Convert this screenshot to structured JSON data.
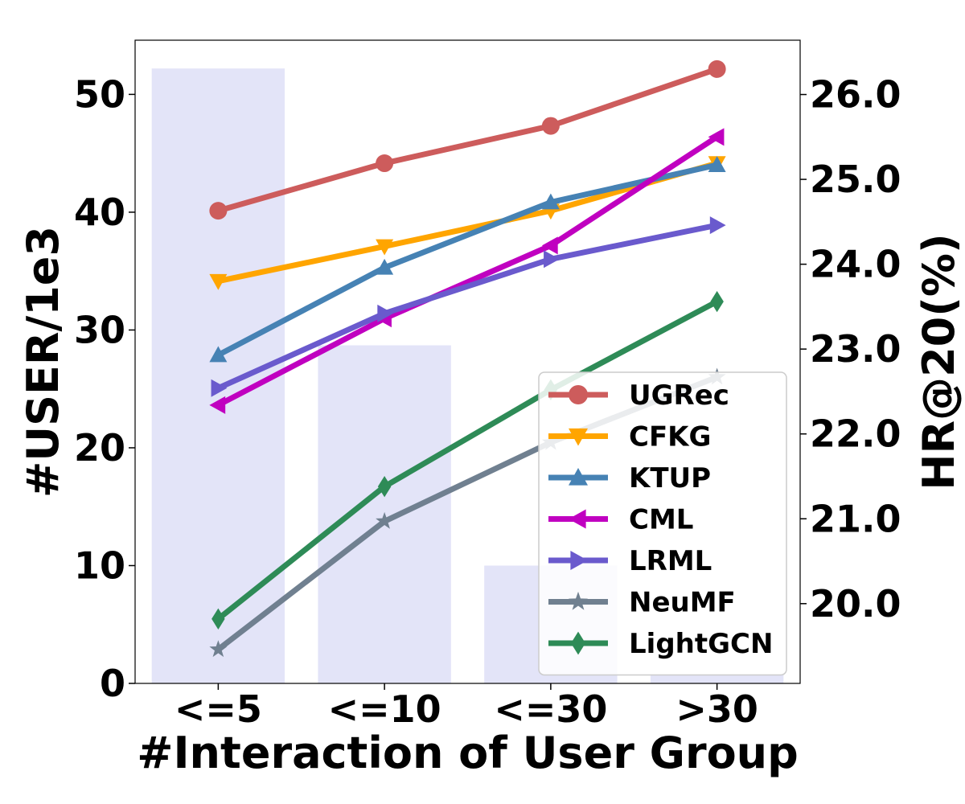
{
  "chart_data": {
    "type": "bar+line",
    "title": "",
    "xlabel": "#Interaction of User Group",
    "ylabel_left": "#USER/1e3",
    "ylabel_right": "HR@20(%)",
    "categories": [
      "<=5",
      "<=10",
      "<=30",
      ">30"
    ],
    "bars": {
      "axis": "left",
      "color": "#e3e4f8",
      "values": [
        52.2,
        28.7,
        10.0,
        0.8
      ]
    },
    "ylim_left": [
      0,
      54.6
    ],
    "ylim_right": [
      19.06,
      26.64
    ],
    "yticks_left": [
      0,
      10,
      20,
      30,
      40,
      50
    ],
    "yticks_right": [
      "20.0",
      "21.0",
      "22.0",
      "23.0",
      "24.0",
      "25.0",
      "26.0"
    ],
    "series": [
      {
        "name": "UGRec",
        "color": "#cd5c5c",
        "marker": "circle",
        "values": [
          24.63,
          25.19,
          25.63,
          26.3
        ]
      },
      {
        "name": "CFKG",
        "color": "#ffa500",
        "marker": "triangle-down",
        "values": [
          23.8,
          24.21,
          24.63,
          25.19
        ]
      },
      {
        "name": "KTUP",
        "color": "#4682b4",
        "marker": "triangle-up",
        "values": [
          22.93,
          23.96,
          24.73,
          25.17
        ]
      },
      {
        "name": "CML",
        "color": "#c000c0",
        "marker": "triangle-left",
        "values": [
          22.34,
          23.36,
          24.22,
          25.5
        ]
      },
      {
        "name": "LRML",
        "color": "#6a5acd",
        "marker": "triangle-right",
        "values": [
          22.54,
          23.42,
          24.06,
          24.46
        ]
      },
      {
        "name": "NeuMF",
        "color": "#708090",
        "marker": "star",
        "values": [
          19.46,
          20.97,
          21.9,
          22.67
        ]
      },
      {
        "name": "LightGCN",
        "color": "#2e8b57",
        "marker": "diamond",
        "values": [
          19.82,
          21.38,
          22.52,
          23.56
        ]
      }
    ],
    "legend_position": "lower-right",
    "grid": false
  }
}
